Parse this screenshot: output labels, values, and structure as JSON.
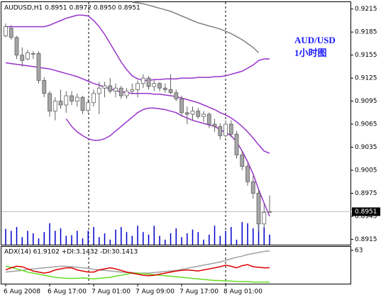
{
  "chart_data": [
    {
      "type": "candlestick",
      "title": "AUDUSD,H1  0.8951 0.8972 0.8950 0.8951",
      "annotations": [
        "AUD/USD",
        "1小时图"
      ],
      "categories": [
        "6 Aug 2008",
        null,
        null,
        null,
        null,
        null,
        null,
        null,
        "6 Aug 17:00",
        null,
        null,
        null,
        null,
        null,
        null,
        null,
        "7 Aug 01:00",
        null,
        null,
        null,
        null,
        null,
        null,
        null,
        "7 Aug 09:00",
        null,
        null,
        null,
        null,
        null,
        null,
        null,
        "7 Aug 17:00",
        null,
        null,
        null,
        null,
        null,
        null,
        null,
        "8 Aug 01:00",
        null,
        null,
        null,
        null,
        null,
        null,
        null,
        null
      ],
      "open": [
        0.918,
        0.919,
        0.9178,
        0.9155,
        0.915,
        0.9156,
        0.9157,
        0.9122,
        0.9105,
        0.9082,
        0.9095,
        0.909,
        0.9102,
        0.9095,
        0.91,
        0.9083,
        0.9093,
        0.9105,
        0.9112,
        0.9115,
        0.9108,
        0.9112,
        0.9102,
        0.9108,
        0.911,
        0.9118,
        0.9125,
        0.9114,
        0.9118,
        0.9112,
        0.911,
        0.9106,
        0.9098,
        0.908,
        0.9078,
        0.9082,
        0.9075,
        0.9078,
        0.9065,
        0.9062,
        0.905,
        0.9065,
        0.9052,
        0.9025,
        0.901,
        0.899,
        0.8975,
        0.8935,
        0.8951
      ],
      "high": [
        0.9196,
        0.9194,
        0.918,
        0.9165,
        0.9162,
        0.916,
        0.916,
        0.9126,
        0.9108,
        0.91,
        0.911,
        0.9108,
        0.9108,
        0.9105,
        0.9102,
        0.9098,
        0.911,
        0.912,
        0.912,
        0.9125,
        0.9118,
        0.9115,
        0.9112,
        0.9118,
        0.9122,
        0.913,
        0.9128,
        0.9122,
        0.912,
        0.9118,
        0.913,
        0.911,
        0.9102,
        0.9088,
        0.9088,
        0.9086,
        0.9082,
        0.908,
        0.9072,
        0.9066,
        0.907,
        0.907,
        0.9056,
        0.903,
        0.9014,
        0.8998,
        0.898,
        0.8962,
        0.8972
      ],
      "low": [
        0.9178,
        0.9175,
        0.915,
        0.914,
        0.9148,
        0.915,
        0.9118,
        0.91,
        0.9075,
        0.907,
        0.9085,
        0.908,
        0.909,
        0.9088,
        0.9078,
        0.908,
        0.9088,
        0.9078,
        0.91,
        0.9105,
        0.91,
        0.9098,
        0.9098,
        0.9104,
        0.91,
        0.9112,
        0.911,
        0.9108,
        0.9108,
        0.9106,
        0.9104,
        0.9095,
        0.9075,
        0.9065,
        0.907,
        0.9072,
        0.9068,
        0.906,
        0.9055,
        0.9045,
        0.9048,
        0.9048,
        0.902,
        0.9005,
        0.8985,
        0.8968,
        0.8925,
        0.893,
        0.895
      ],
      "close": [
        0.9192,
        0.9178,
        0.9155,
        0.9148,
        0.9158,
        0.9157,
        0.9122,
        0.9105,
        0.9082,
        0.9095,
        0.909,
        0.9102,
        0.9095,
        0.91,
        0.9083,
        0.9093,
        0.9105,
        0.9112,
        0.9115,
        0.9108,
        0.9112,
        0.9102,
        0.9108,
        0.911,
        0.9118,
        0.9125,
        0.9114,
        0.9118,
        0.9112,
        0.911,
        0.9106,
        0.9098,
        0.908,
        0.9078,
        0.9082,
        0.9075,
        0.9078,
        0.9065,
        0.9062,
        0.905,
        0.9065,
        0.9052,
        0.9025,
        0.901,
        0.899,
        0.8975,
        0.8935,
        0.895,
        0.8951
      ],
      "up_color": "#ffffff",
      "down_color": "#a6a6a6",
      "outline_color": "#606060",
      "lines": [
        {
          "color": "#9933cc",
          "values": [
            0.9192,
            0.9192,
            0.9192,
            0.9192,
            0.9192,
            0.9192,
            0.9192,
            0.9192,
            0.9194,
            0.9197,
            0.92,
            0.9203,
            0.9205,
            0.9207,
            0.9207,
            0.9206,
            0.92,
            0.9192,
            0.9182,
            0.917,
            0.9158,
            0.9146,
            0.9136,
            0.9128,
            0.9124,
            0.9122,
            0.9122,
            0.9123,
            0.9123,
            0.9124,
            0.9124,
            0.9124,
            0.9125,
            0.9125,
            0.9125,
            0.9126,
            0.9126,
            0.9126,
            0.9127,
            0.9127,
            0.9128,
            0.913,
            0.9132,
            0.9134,
            0.9138,
            0.9142,
            0.9148,
            0.915,
            0.915
          ]
        },
        {
          "color": "#9933cc",
          "values": [
            0.9145,
            0.9144,
            0.9143,
            0.9142,
            0.9141,
            0.914,
            0.9139,
            0.9138,
            0.9137,
            0.9135,
            0.9133,
            0.9131,
            0.9129,
            0.9127,
            0.9124,
            0.9121,
            0.9118,
            0.9116,
            0.9113,
            0.9111,
            0.9109,
            0.9107,
            0.9106,
            0.9105,
            0.9105,
            0.9105,
            0.9105,
            0.9104,
            0.9104,
            0.9103,
            0.9102,
            0.9101,
            0.9099,
            0.9097,
            0.9095,
            0.9093,
            0.909,
            0.9087,
            0.9084,
            0.908,
            0.9077,
            0.9073,
            0.9068,
            0.9062,
            0.9055,
            0.9047,
            0.9038,
            0.903,
            0.9027
          ]
        },
        {
          "color": "#9933cc",
          "values": [
            null,
            null,
            null,
            null,
            null,
            null,
            null,
            null,
            null,
            null,
            null,
            0.9072,
            0.9062,
            0.9055,
            0.905,
            0.9046,
            0.9044,
            0.9044,
            0.9046,
            0.905,
            0.9056,
            0.9062,
            0.9068,
            0.9074,
            0.908,
            0.9084,
            0.9086,
            0.9086,
            0.9085,
            0.9084,
            0.9082,
            0.908,
            0.9076,
            0.9073,
            0.907,
            0.9068,
            0.9066,
            0.9064,
            0.9062,
            0.9058,
            0.9054,
            0.905,
            0.9042,
            0.903,
            0.9016,
            0.9,
            0.898,
            0.8962,
            0.8945
          ]
        },
        {
          "color": "#808080",
          "values": [
            null,
            null,
            null,
            null,
            null,
            null,
            null,
            null,
            null,
            null,
            null,
            null,
            null,
            null,
            null,
            null,
            null,
            null,
            null,
            null,
            null,
            null,
            null,
            0.9224,
            0.9223,
            0.9222,
            0.922,
            0.9218,
            0.9216,
            0.9214,
            0.9212,
            0.9209,
            0.9206,
            0.9203,
            0.92,
            0.9197,
            0.9195,
            0.9193,
            0.9191,
            0.9189,
            0.9186,
            0.9183,
            0.9179,
            0.9175,
            0.917,
            0.9165,
            0.9158,
            null,
            null
          ]
        }
      ],
      "volume": {
        "color": "#0000cc",
        "values": [
          25,
          22,
          28,
          12,
          22,
          18,
          10,
          20,
          34,
          22,
          26,
          14,
          15,
          22,
          10,
          22,
          28,
          12,
          18,
          8,
          24,
          28,
          20,
          14,
          30,
          20,
          16,
          30,
          14,
          8,
          18,
          26,
          12,
          18,
          24,
          20,
          8,
          16,
          30,
          14,
          22,
          28,
          8,
          36,
          34,
          26,
          32,
          28,
          16
        ]
      },
      "last_price": 0.8951,
      "ylim": [
        0.8908,
        0.9224
      ],
      "yticks": [
        0.9215,
        0.9185,
        0.9155,
        0.9125,
        0.9095,
        0.9065,
        0.9035,
        0.9005,
        0.8975,
        0.8945,
        0.8915
      ]
    },
    {
      "type": "line",
      "title": "ADX(14) 61.9102 +DI:3.1432 -DI:30.1413",
      "ylim": [
        0,
        71
      ],
      "yticks": [
        63
      ],
      "lines": [
        {
          "color": "#a0a0a0",
          "values": [
            22,
            23,
            24,
            25,
            27,
            28,
            29,
            30,
            31,
            32,
            33,
            33,
            32,
            31,
            30,
            29,
            27,
            26,
            25,
            24,
            23,
            22,
            21,
            21,
            20,
            20,
            20,
            21,
            22,
            23,
            24,
            25,
            27,
            29,
            31,
            33,
            35,
            37,
            39,
            41,
            44,
            47,
            50,
            52,
            55,
            57,
            59,
            61,
            61.9102
          ]
        },
        {
          "color": "#66dd22",
          "values": [
            33,
            31,
            28,
            25,
            22,
            20,
            18,
            16,
            14,
            12,
            11,
            10,
            10,
            10,
            11,
            10,
            9,
            10,
            11,
            12,
            14,
            16,
            18,
            20,
            20,
            19,
            18,
            17,
            16,
            15,
            14,
            13,
            12,
            11,
            10,
            9,
            8,
            7,
            6,
            6,
            5,
            5,
            4,
            4,
            4,
            3,
            3,
            3,
            3.1432
          ]
        },
        {
          "color": "#dd0000",
          "values": [
            26,
            30,
            33,
            32,
            28,
            24,
            22,
            20,
            22,
            26,
            28,
            30,
            30,
            26,
            24,
            22,
            22,
            26,
            28,
            30,
            28,
            25,
            22,
            20,
            18,
            16,
            15,
            16,
            18,
            20,
            22,
            24,
            25,
            26,
            25,
            24,
            26,
            28,
            30,
            32,
            35,
            33,
            30,
            34,
            36,
            32,
            31,
            30,
            30.1413
          ]
        }
      ]
    }
  ]
}
